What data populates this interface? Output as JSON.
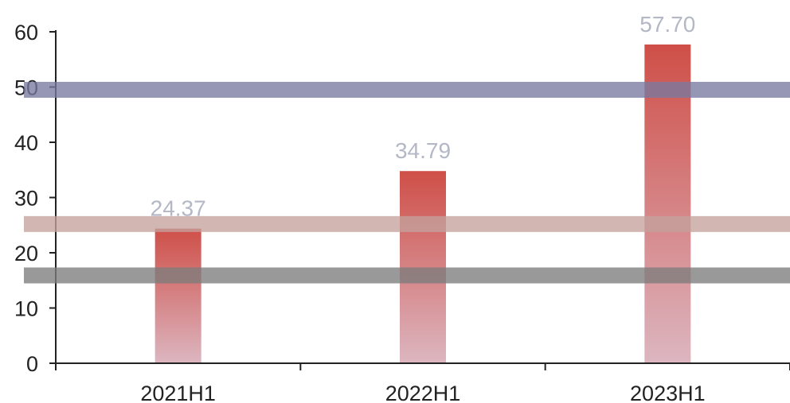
{
  "chart_data": {
    "type": "bar",
    "title": "",
    "xlabel": "",
    "ylabel": "",
    "categories": [
      "2021H1",
      "2022H1",
      "2023H1"
    ],
    "values": [
      24.37,
      34.79,
      57.7
    ],
    "data_labels": [
      "24.37",
      "34.79",
      "57.70"
    ],
    "ylim": [
      0,
      60
    ],
    "yticks": [
      0,
      10,
      20,
      30,
      40,
      50,
      60
    ],
    "ytick_labels": [
      "0",
      "10",
      "20",
      "30",
      "40",
      "50",
      "60"
    ],
    "grid": false,
    "colors": {
      "bar_top": "#cf4f48",
      "bar_bottom": "#dcb6c0",
      "data_label": "#b3b7c6",
      "axis": "#222222"
    },
    "overlay_bands": [
      {
        "y": 49.5,
        "color": "#787aa0"
      },
      {
        "y": 25.2,
        "color": "#c4a29c"
      },
      {
        "y": 15.9,
        "color": "#7c7c7c"
      }
    ]
  }
}
